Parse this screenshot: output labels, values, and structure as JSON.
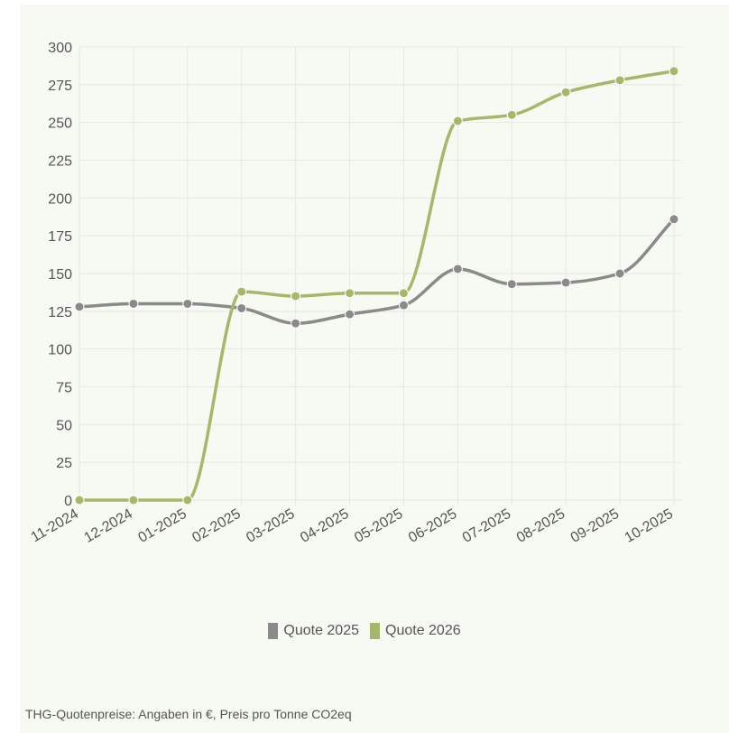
{
  "chart_data": {
    "type": "line",
    "categories": [
      "11-2024",
      "12-2024",
      "01-2025",
      "02-2025",
      "03-2025",
      "04-2025",
      "05-2025",
      "06-2025",
      "07-2025",
      "08-2025",
      "09-2025",
      "10-2025"
    ],
    "series": [
      {
        "name": "Quote 2025",
        "color": "#8a8a8a",
        "values": [
          128,
          130,
          130,
          127,
          117,
          123,
          129,
          153,
          143,
          144,
          150,
          186
        ]
      },
      {
        "name": "Quote 2026",
        "color": "#a5b86a",
        "values": [
          0,
          0,
          0,
          138,
          135,
          137,
          137,
          251,
          255,
          270,
          278,
          284
        ]
      }
    ],
    "ylim": [
      0,
      300
    ],
    "yticks": [
      0,
      25,
      50,
      75,
      100,
      125,
      150,
      175,
      200,
      225,
      250,
      275,
      300
    ],
    "grid": true,
    "legend_position": "bottom"
  },
  "caption": "THG-Quotenpreise: Angaben in €, Preis pro Tonne CO2eq"
}
